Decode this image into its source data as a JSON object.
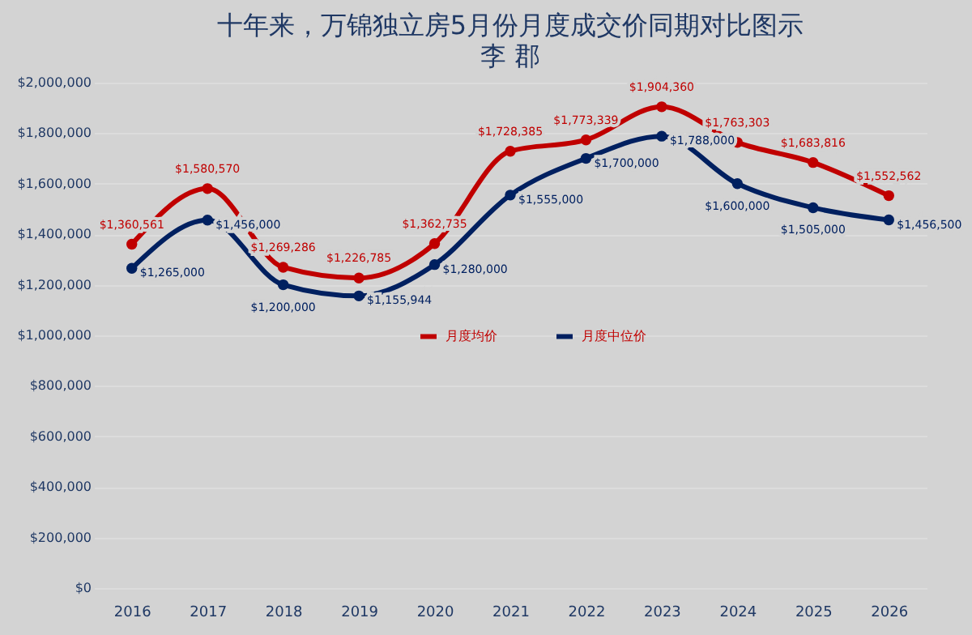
{
  "chart_data": {
    "type": "line",
    "title": "十年来，万锦独立房5月份月度成交价同期对比图示",
    "subtitle": "李 郡",
    "categories": [
      "2016",
      "2017",
      "2018",
      "2019",
      "2020",
      "2021",
      "2022",
      "2023",
      "2024",
      "2025",
      "2026"
    ],
    "series": [
      {
        "name": "月度均价",
        "color": "#c00000",
        "values": [
          1360561,
          1580570,
          1269286,
          1226785,
          1362735,
          1728385,
          1773339,
          1904360,
          1763303,
          1683816,
          1552562
        ],
        "value_labels": [
          "$1,360,561",
          "$1,580,570",
          "$1,269,286",
          "$1,226,785",
          "$1,362,735",
          "$1,728,385",
          "$1,773,339",
          "$1,904,360",
          "$1,763,303",
          "$1,683,816",
          "$1,552,562"
        ]
      },
      {
        "name": "月度中位价",
        "color": "#002060",
        "values": [
          1265000,
          1456000,
          1200000,
          1155944,
          1280000,
          1555000,
          1700000,
          1788000,
          1600000,
          1505000,
          1456500
        ],
        "value_labels": [
          "$1,265,000",
          "$1,456,000",
          "$1,200,000",
          "$1,155,944",
          "$1,280,000",
          "$1,555,000",
          "$1,700,000",
          "$1,788,000",
          "$1,600,000",
          "$1,505,000",
          "$1,456,500"
        ]
      }
    ],
    "ylim": [
      0,
      2000000
    ],
    "yticks": [
      {
        "value": 0,
        "label": "$0"
      },
      {
        "value": 200000,
        "label": "$200,000"
      },
      {
        "value": 400000,
        "label": "$400,000"
      },
      {
        "value": 600000,
        "label": "$600,000"
      },
      {
        "value": 800000,
        "label": "$800,000"
      },
      {
        "value": 1000000,
        "label": "$1,000,000"
      },
      {
        "value": 1200000,
        "label": "$1,200,000"
      },
      {
        "value": 1400000,
        "label": "$1,400,000"
      },
      {
        "value": 1600000,
        "label": "$1,600,000"
      },
      {
        "value": 1800000,
        "label": "$1,800,000"
      },
      {
        "value": 2000000,
        "label": "$2,000,000"
      }
    ],
    "grid": "y",
    "legend": "center",
    "marker": "circle",
    "line_style": "solid"
  }
}
